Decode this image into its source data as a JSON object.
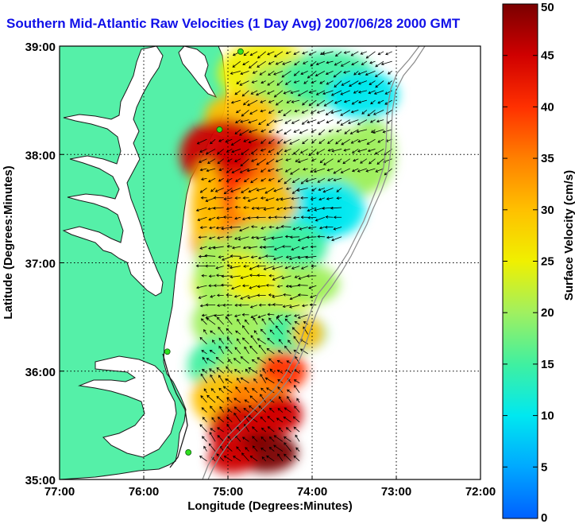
{
  "title": "Southern Mid-Atlantic Raw Velocities (1 Day Avg) 2007/06/28 2000 GMT",
  "xlabel": "Longitude (Degrees:Minutes)",
  "ylabel": "Latitude (Degrees:Minutes)",
  "x_ticks": [
    "77:00",
    "76:00",
    "75:00",
    "74:00",
    "73:00",
    "72:00"
  ],
  "y_ticks": [
    "39:00",
    "38:00",
    "37:00",
    "36:00",
    "35:00"
  ],
  "colorbar": {
    "label": "Surface Velocity (cm/s)",
    "ticks": [
      "0",
      "5",
      "10",
      "15",
      "20",
      "25",
      "30",
      "35",
      "40",
      "45",
      "50"
    ],
    "min": 0,
    "max": 50,
    "colors": [
      "#0060ff",
      "#00a8ff",
      "#00e8f0",
      "#40f0a0",
      "#a0f060",
      "#f0f000",
      "#ffc000",
      "#ff8000",
      "#ff3000",
      "#d00000",
      "#7a0000"
    ]
  },
  "map": {
    "land_color": "#55f0a8",
    "lon_range": [
      -77,
      -72
    ],
    "lat_range": [
      35,
      39
    ],
    "radar_sites": [
      {
        "lon": -74.85,
        "lat": 38.95
      },
      {
        "lon": -75.1,
        "lat": 38.23
      },
      {
        "lon": -75.72,
        "lat": 36.18
      },
      {
        "lon": -75.47,
        "lat": 35.25
      }
    ]
  }
}
